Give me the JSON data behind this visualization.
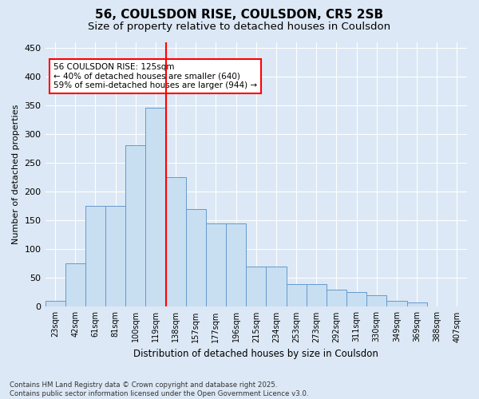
{
  "title1": "56, COULSDON RISE, COULSDON, CR5 2SB",
  "title2": "Size of property relative to detached houses in Coulsdon",
  "xlabel": "Distribution of detached houses by size in Coulsdon",
  "ylabel": "Number of detached properties",
  "bins": [
    "23sqm",
    "42sqm",
    "61sqm",
    "81sqm",
    "100sqm",
    "119sqm",
    "138sqm",
    "157sqm",
    "177sqm",
    "196sqm",
    "215sqm",
    "234sqm",
    "253sqm",
    "273sqm",
    "292sqm",
    "311sqm",
    "330sqm",
    "349sqm",
    "369sqm",
    "388sqm",
    "407sqm"
  ],
  "values": [
    10,
    75,
    175,
    175,
    280,
    345,
    225,
    170,
    145,
    145,
    70,
    70,
    40,
    40,
    30,
    25,
    20,
    10,
    8,
    0,
    0
  ],
  "bar_color": "#c8dff2",
  "bar_edge_color": "#6699cc",
  "vline_color": "red",
  "annotation_line1": "56 COULSDON RISE: 125sqm",
  "annotation_line2": "← 40% of detached houses are smaller (640)",
  "annotation_line3": "59% of semi-detached houses are larger (944) →",
  "annotation_box_color": "white",
  "annotation_box_edge": "red",
  "background_color": "#dce8f5",
  "grid_color": "white",
  "footer": "Contains HM Land Registry data © Crown copyright and database right 2025.\nContains public sector information licensed under the Open Government Licence v3.0.",
  "ylim": [
    0,
    460
  ],
  "yticks": [
    0,
    50,
    100,
    150,
    200,
    250,
    300,
    350,
    400,
    450
  ]
}
